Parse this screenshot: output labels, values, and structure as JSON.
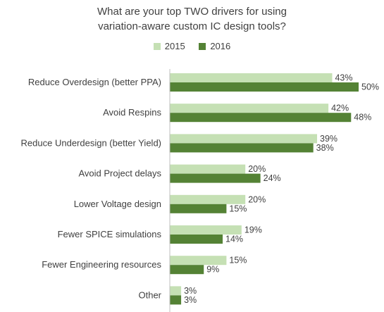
{
  "chart_data": {
    "type": "bar",
    "orientation": "horizontal",
    "title_lines": [
      "What are your top TWO drivers for using",
      "variation-aware custom IC design tools?"
    ],
    "categories": [
      "Reduce Overdesign (better PPA)",
      "Avoid Respins",
      "Reduce Underdesign (better Yield)",
      "Avoid Project delays",
      "Lower Voltage design",
      "Fewer SPICE simulations",
      "Fewer Engineering resources",
      "Other"
    ],
    "series": [
      {
        "name": "2015",
        "color": "#c5e0b4",
        "values": [
          43,
          42,
          39,
          20,
          20,
          19,
          15,
          3
        ],
        "labels": [
          "43%",
          "42%",
          "39%",
          "20%",
          "20%",
          "19%",
          "15%",
          "3%"
        ]
      },
      {
        "name": "2016",
        "color": "#548235",
        "values": [
          50,
          48,
          38,
          24,
          15,
          14,
          9,
          3
        ],
        "labels": [
          "50%",
          "48%",
          "38%",
          "24%",
          "15%",
          "14%",
          "9%",
          "3%"
        ]
      }
    ],
    "xlim": [
      0,
      50
    ],
    "value_format": "percent",
    "legend_position": "top",
    "grid": false
  }
}
